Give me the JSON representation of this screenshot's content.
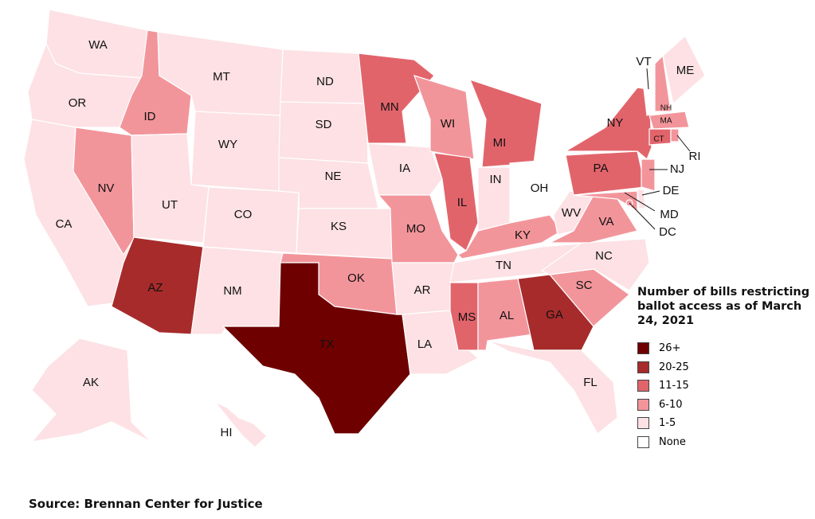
{
  "map": {
    "states": [
      {
        "label": "WA",
        "category": "1-5"
      },
      {
        "label": "OR",
        "category": "1-5"
      },
      {
        "label": "CA",
        "category": "1-5"
      },
      {
        "label": "NV",
        "category": "6-10"
      },
      {
        "label": "ID",
        "category": "6-10"
      },
      {
        "label": "MT",
        "category": "1-5"
      },
      {
        "label": "WY",
        "category": "1-5"
      },
      {
        "label": "UT",
        "category": "1-5"
      },
      {
        "label": "CO",
        "category": "1-5"
      },
      {
        "label": "AZ",
        "category": "20-25"
      },
      {
        "label": "NM",
        "category": "1-5"
      },
      {
        "label": "ND",
        "category": "1-5"
      },
      {
        "label": "SD",
        "category": "1-5"
      },
      {
        "label": "NE",
        "category": "1-5"
      },
      {
        "label": "KS",
        "category": "1-5"
      },
      {
        "label": "OK",
        "category": "6-10"
      },
      {
        "label": "TX",
        "category": "26+"
      },
      {
        "label": "MN",
        "category": "11-15"
      },
      {
        "label": "IA",
        "category": "1-5"
      },
      {
        "label": "MO",
        "category": "6-10"
      },
      {
        "label": "AR",
        "category": "1-5"
      },
      {
        "label": "LA",
        "category": "1-5"
      },
      {
        "label": "WI",
        "category": "6-10"
      },
      {
        "label": "IL",
        "category": "11-15"
      },
      {
        "label": "MI",
        "category": "11-15"
      },
      {
        "label": "IN",
        "category": "1-5"
      },
      {
        "label": "OH",
        "category": "None"
      },
      {
        "label": "KY",
        "category": "6-10"
      },
      {
        "label": "TN",
        "category": "1-5"
      },
      {
        "label": "MS",
        "category": "11-15"
      },
      {
        "label": "AL",
        "category": "6-10"
      },
      {
        "label": "GA",
        "category": "20-25"
      },
      {
        "label": "FL",
        "category": "1-5"
      },
      {
        "label": "SC",
        "category": "6-10"
      },
      {
        "label": "NC",
        "category": "1-5"
      },
      {
        "label": "VA",
        "category": "6-10"
      },
      {
        "label": "WV",
        "category": "1-5"
      },
      {
        "label": "PA",
        "category": "11-15"
      },
      {
        "label": "NY",
        "category": "11-15"
      },
      {
        "label": "NJ",
        "category": "6-10"
      },
      {
        "label": "DE",
        "category": "1-5"
      },
      {
        "label": "MD",
        "category": "6-10"
      },
      {
        "label": "DC",
        "category": "6-10"
      },
      {
        "label": "VT",
        "category": "None"
      },
      {
        "label": "NH",
        "category": "6-10"
      },
      {
        "label": "ME",
        "category": "1-5"
      },
      {
        "label": "MA",
        "category": "6-10"
      },
      {
        "label": "CT",
        "category": "11-15"
      },
      {
        "label": "RI",
        "category": "6-10"
      },
      {
        "label": "AK",
        "category": "1-5"
      },
      {
        "label": "HI",
        "category": "1-5"
      }
    ]
  },
  "legend": {
    "title": "Number of bills restricting ballot access as of March 24, 2021",
    "items": [
      {
        "label": "26+",
        "color": "#6e0000"
      },
      {
        "label": "20-25",
        "color": "#a72b2b"
      },
      {
        "label": "11-15",
        "color": "#e2646b"
      },
      {
        "label": "6-10",
        "color": "#f2959b"
      },
      {
        "label": "1-5",
        "color": "#fde1e4"
      },
      {
        "label": "None",
        "color": "#ffffff"
      }
    ]
  },
  "source": "Source: Brennan Center for Justice"
}
